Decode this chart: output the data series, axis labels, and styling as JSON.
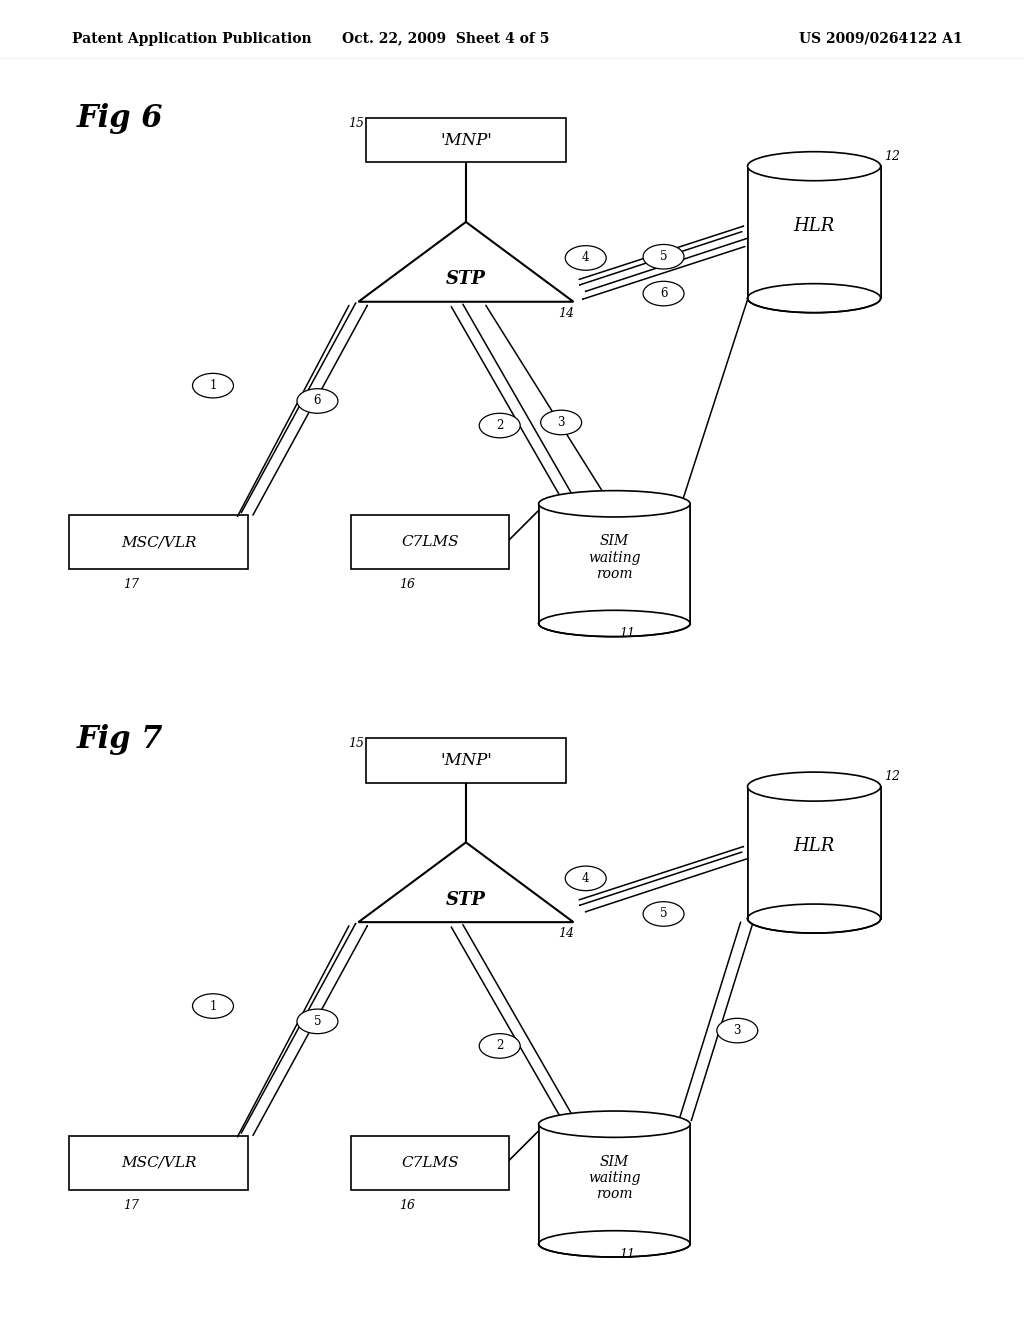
{
  "background_color": "#ffffff",
  "header_left": "Patent Application Publication",
  "header_center": "Oct. 22, 2009  Sheet 4 of 5",
  "header_right": "US 2009/0264122 A1",
  "fig6_label": "Fig 6",
  "fig7_label": "Fig 7"
}
